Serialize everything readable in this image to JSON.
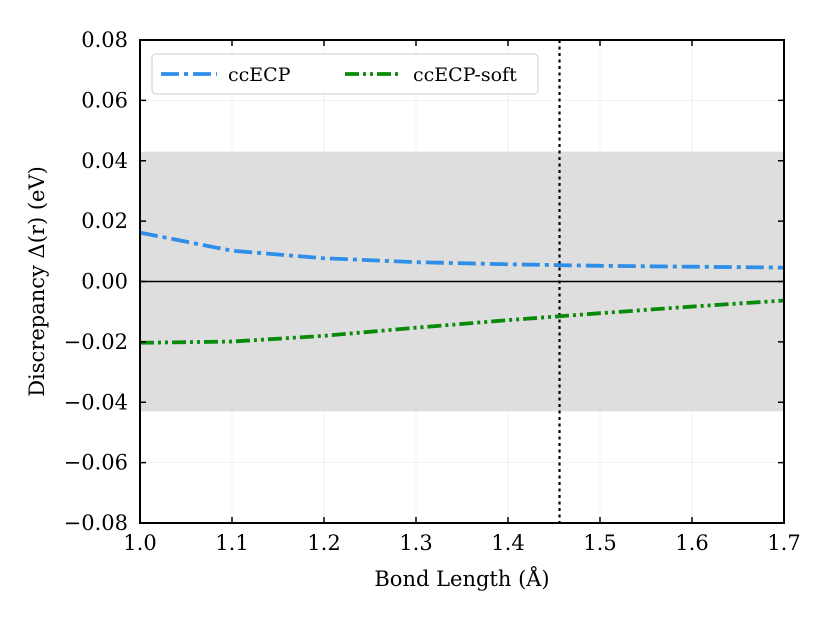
{
  "chart_data": {
    "type": "line",
    "xlabel": "Bond Length (Å)",
    "ylabel": "Discrepancy Δ(r) (eV)",
    "xlim": [
      1.0,
      1.7
    ],
    "ylim": [
      -0.08,
      0.08
    ],
    "xticks": [
      1.0,
      1.1,
      1.2,
      1.3,
      1.4,
      1.5,
      1.6,
      1.7
    ],
    "xtick_labels": [
      "1.0",
      "1.1",
      "1.2",
      "1.3",
      "1.4",
      "1.5",
      "1.6",
      "1.7"
    ],
    "yticks": [
      -0.08,
      -0.06,
      -0.04,
      -0.02,
      0.0,
      0.02,
      0.04,
      0.06,
      0.08
    ],
    "ytick_labels": [
      "−0.08",
      "−0.06",
      "−0.04",
      "−0.02",
      "0.00",
      "0.02",
      "0.04",
      "0.06",
      "0.08"
    ],
    "grid": true,
    "legend_position": "top-left",
    "shaded_band": {
      "y_min": -0.043,
      "y_max": 0.043,
      "color": "#dedede"
    },
    "reference_vline": {
      "x": 1.456,
      "style": "dotted",
      "color": "#000000"
    },
    "reference_hline": {
      "y": 0.0,
      "color": "#000000"
    },
    "series": [
      {
        "name": "ccECP",
        "color": "#2f8ee8",
        "style": "dashdot",
        "x": [
          1.0,
          1.1,
          1.2,
          1.3,
          1.4,
          1.5,
          1.6,
          1.7
        ],
        "y": [
          0.0162,
          0.0102,
          0.0077,
          0.0064,
          0.0057,
          0.0052,
          0.0049,
          0.0046
        ]
      },
      {
        "name": "ccECP-soft",
        "color": "#0a8a0a",
        "style": "dashdotdot",
        "x": [
          1.0,
          1.1,
          1.2,
          1.3,
          1.4,
          1.5,
          1.6,
          1.7
        ],
        "y": [
          -0.0203,
          -0.0199,
          -0.018,
          -0.0153,
          -0.0128,
          -0.0105,
          -0.0083,
          -0.0063
        ]
      }
    ]
  }
}
